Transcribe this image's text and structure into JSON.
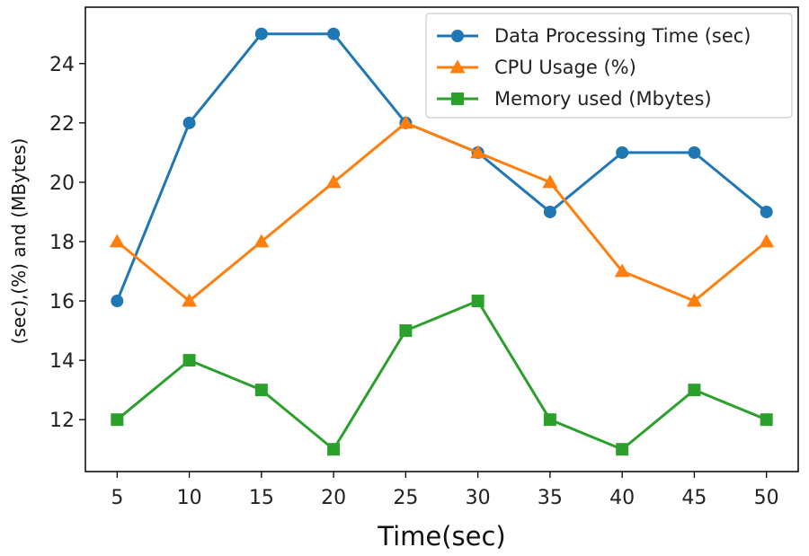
{
  "chart_data": {
    "type": "line",
    "title": "",
    "xlabel": "Time(sec)",
    "ylabel": "(sec),(%) and (MBytes)",
    "x": [
      5,
      10,
      15,
      20,
      25,
      30,
      35,
      40,
      45,
      50
    ],
    "xticks": [
      5,
      10,
      15,
      20,
      25,
      30,
      35,
      40,
      45,
      50
    ],
    "yticks": [
      12,
      14,
      16,
      18,
      20,
      22,
      24
    ],
    "xlim": [
      2.8,
      52.2
    ],
    "ylim": [
      10.25,
      25.9
    ],
    "grid": false,
    "legend_position": "top-right",
    "series": [
      {
        "name": "Data Processing Time (sec)",
        "color": "#1f77b4",
        "marker": "circle",
        "values": [
          16,
          22,
          25,
          25,
          22,
          21,
          19,
          21,
          21,
          19
        ]
      },
      {
        "name": "CPU Usage (%)",
        "color": "#ff7f0e",
        "marker": "triangle",
        "values": [
          18,
          16,
          18,
          20,
          22,
          21,
          20,
          17,
          16,
          18
        ]
      },
      {
        "name": "Memory used (Mbytes)",
        "color": "#2ca02c",
        "marker": "square",
        "values": [
          12,
          14,
          13,
          11,
          15,
          16,
          12,
          11,
          13,
          12
        ]
      }
    ]
  }
}
